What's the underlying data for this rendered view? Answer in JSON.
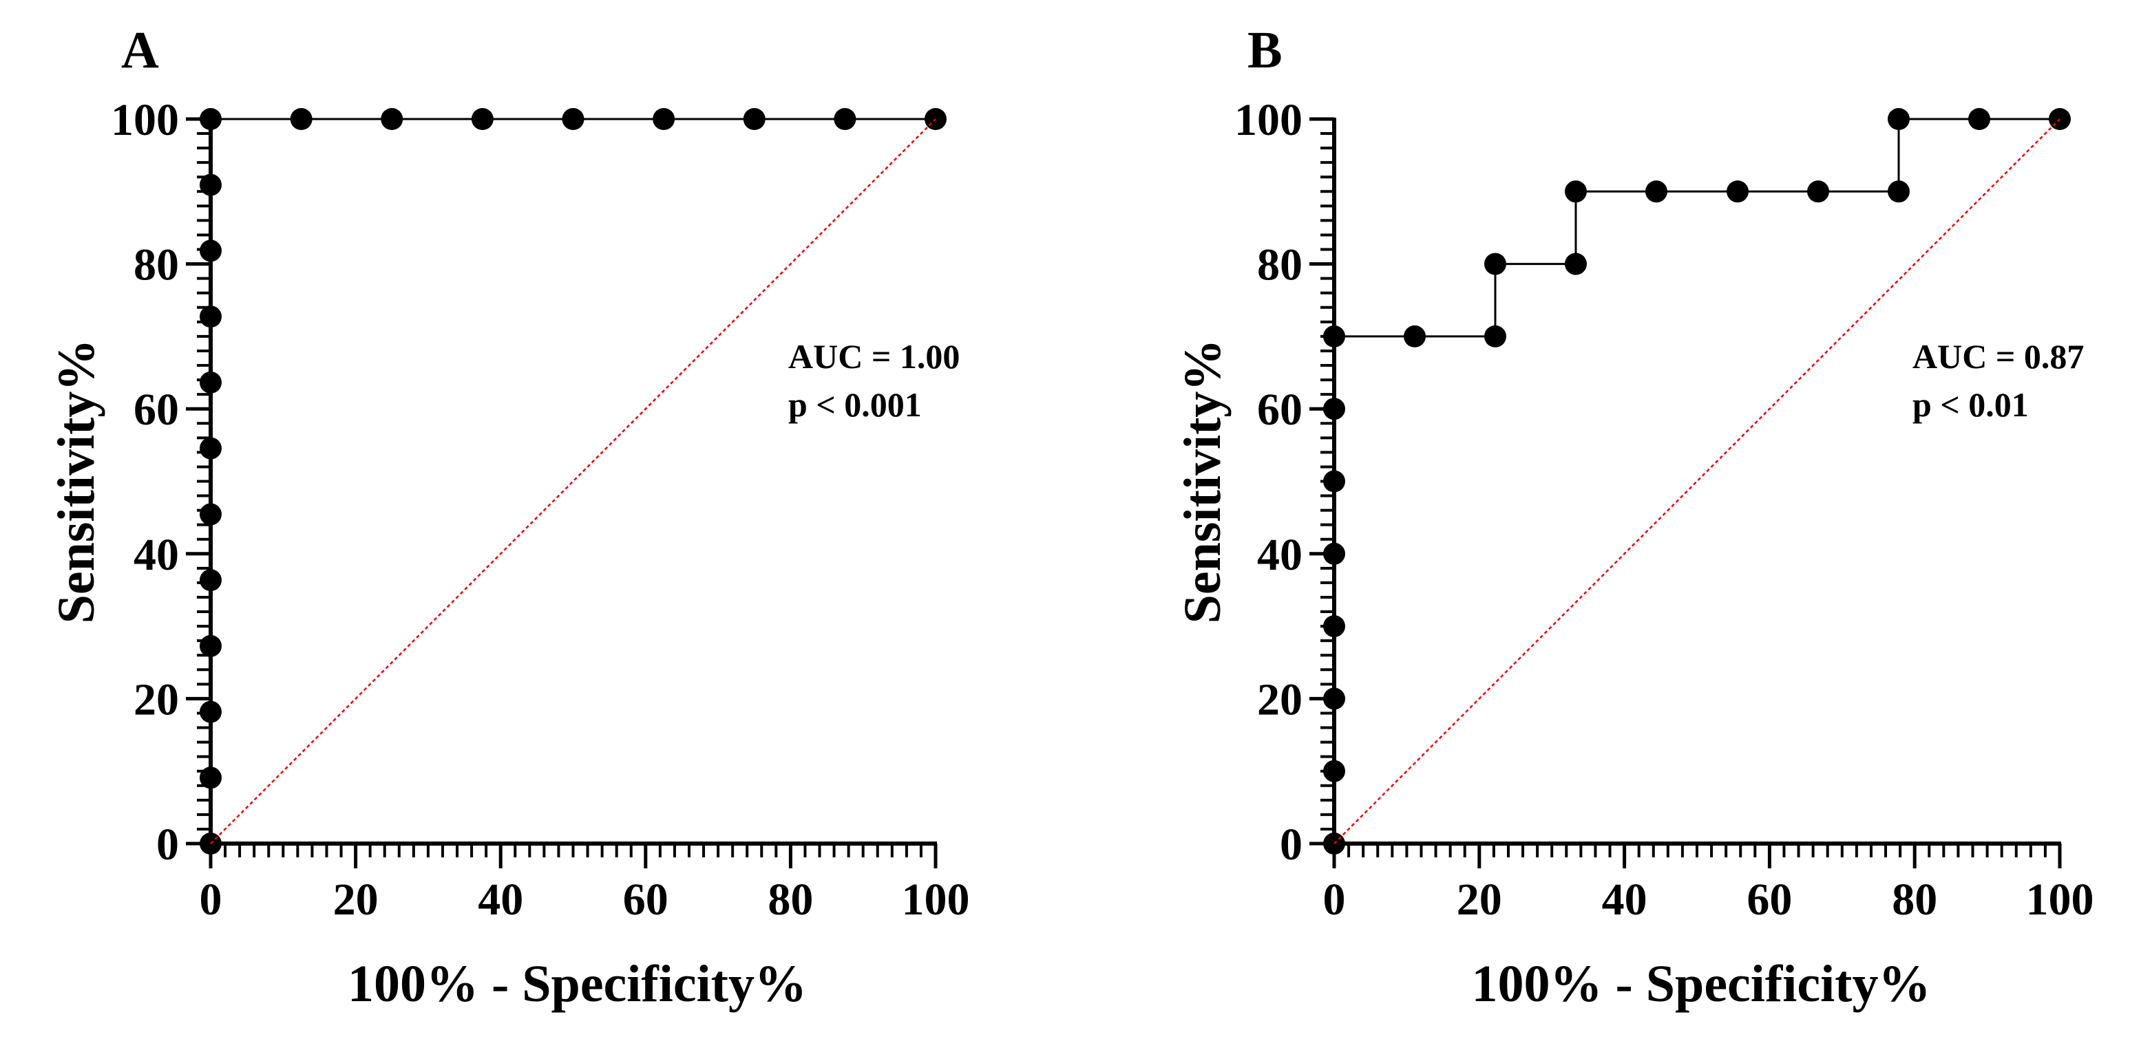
{
  "chart_data": [
    {
      "type": "line",
      "panel_label": "A",
      "xlabel": "100% - Specificity%",
      "ylabel": "Sensitivity%",
      "xlim": [
        0,
        100
      ],
      "ylim": [
        0,
        100
      ],
      "xticks": [
        0,
        20,
        40,
        60,
        80,
        100
      ],
      "yticks": [
        0,
        20,
        40,
        60,
        80,
        100
      ],
      "xtick_labels": [
        "0",
        "20",
        "40",
        "60",
        "80",
        "100"
      ],
      "ytick_labels": [
        "0",
        "20",
        "40",
        "60",
        "80",
        "100"
      ],
      "annotations": [
        "AUC = 1.00",
        "p < 0.001"
      ],
      "series": [
        {
          "name": "ROC curve",
          "color": "#000000",
          "points": [
            [
              0,
              0
            ],
            [
              0,
              9.09
            ],
            [
              0,
              18.18
            ],
            [
              0,
              27.27
            ],
            [
              0,
              36.36
            ],
            [
              0,
              45.45
            ],
            [
              0,
              54.55
            ],
            [
              0,
              63.64
            ],
            [
              0,
              72.73
            ],
            [
              0,
              81.82
            ],
            [
              0,
              90.91
            ],
            [
              0,
              100
            ],
            [
              12.5,
              100
            ],
            [
              25,
              100
            ],
            [
              37.5,
              100
            ],
            [
              50,
              100
            ],
            [
              62.5,
              100
            ],
            [
              75,
              100
            ],
            [
              87.5,
              100
            ],
            [
              100,
              100
            ]
          ]
        },
        {
          "name": "Reference line",
          "color": "#e8000b",
          "style": "dotted",
          "points": [
            [
              0,
              0
            ],
            [
              100,
              100
            ]
          ]
        }
      ]
    },
    {
      "type": "line",
      "panel_label": "B",
      "xlabel": "100% - Specificity%",
      "ylabel": "Sensitivity%",
      "xlim": [
        0,
        100
      ],
      "ylim": [
        0,
        100
      ],
      "xticks": [
        0,
        20,
        40,
        60,
        80,
        100
      ],
      "yticks": [
        0,
        20,
        40,
        60,
        80,
        100
      ],
      "xtick_labels": [
        "0",
        "20",
        "40",
        "60",
        "80",
        "100"
      ],
      "ytick_labels": [
        "0",
        "20",
        "40",
        "60",
        "80",
        "100"
      ],
      "annotations": [
        "AUC = 0.87",
        "p < 0.01"
      ],
      "series": [
        {
          "name": "ROC curve",
          "color": "#000000",
          "points": [
            [
              0,
              0
            ],
            [
              0,
              10
            ],
            [
              0,
              20
            ],
            [
              0,
              30
            ],
            [
              0,
              40
            ],
            [
              0,
              50
            ],
            [
              0,
              60
            ],
            [
              0,
              70
            ],
            [
              11.1,
              70
            ],
            [
              22.2,
              70
            ],
            [
              22.2,
              80
            ],
            [
              33.3,
              80
            ],
            [
              33.3,
              90
            ],
            [
              44.4,
              90
            ],
            [
              55.6,
              90
            ],
            [
              66.7,
              90
            ],
            [
              77.8,
              90
            ],
            [
              77.8,
              100
            ],
            [
              88.9,
              100
            ],
            [
              100,
              100
            ]
          ]
        },
        {
          "name": "Reference line",
          "color": "#e8000b",
          "style": "dotted",
          "points": [
            [
              0,
              0
            ],
            [
              100,
              100
            ]
          ]
        }
      ]
    }
  ]
}
